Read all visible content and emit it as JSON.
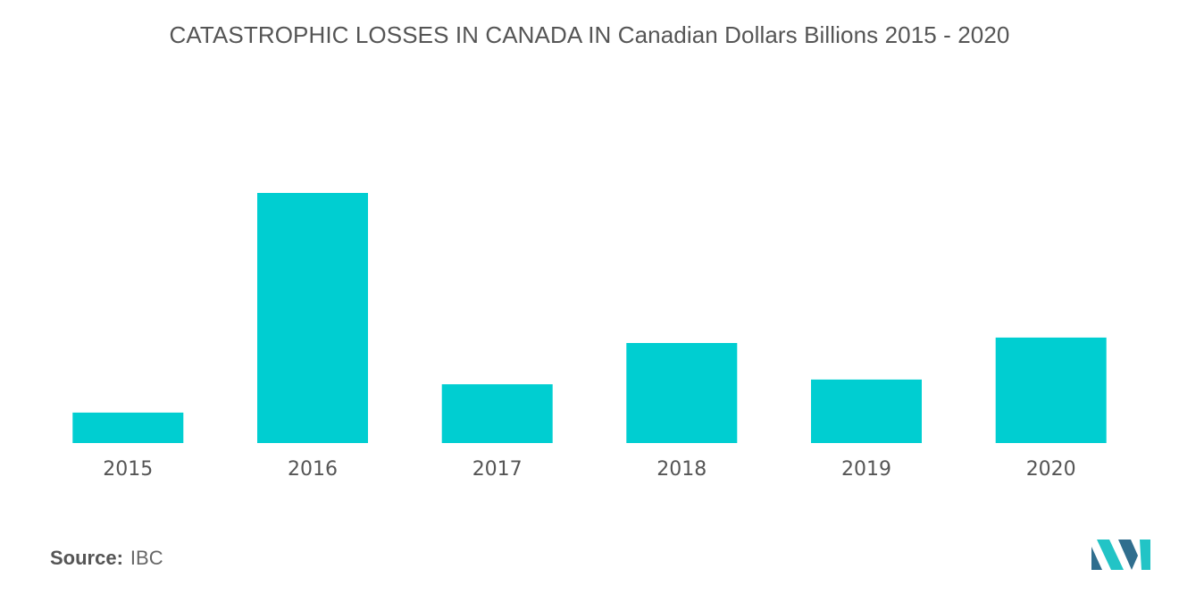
{
  "title": "CATASTROPHIC LOSSES IN CANADA IN Canadian Dollars Billions 2015 - 2020",
  "source": {
    "label": "Source:",
    "value": "IBC"
  },
  "colors": {
    "bar": "#00CED1",
    "text": "#555555",
    "logo_dark": "#2F6E8E",
    "logo_light": "#22C4C6"
  },
  "logo": {
    "icon": "mordor-intelligence-logo-icon"
  },
  "chart_data": {
    "type": "bar",
    "categories": [
      "2015",
      "2016",
      "2017",
      "2018",
      "2019",
      "2020"
    ],
    "values": [
      0.45,
      3.7,
      0.87,
      1.48,
      0.94,
      1.56
    ],
    "title": "CATASTROPHIC LOSSES IN CANADA IN Canadian Dollars Billions 2015 - 2020",
    "xlabel": "",
    "ylabel": "",
    "ylim": [
      0,
      3.7
    ],
    "grid": false,
    "legend": "none"
  }
}
